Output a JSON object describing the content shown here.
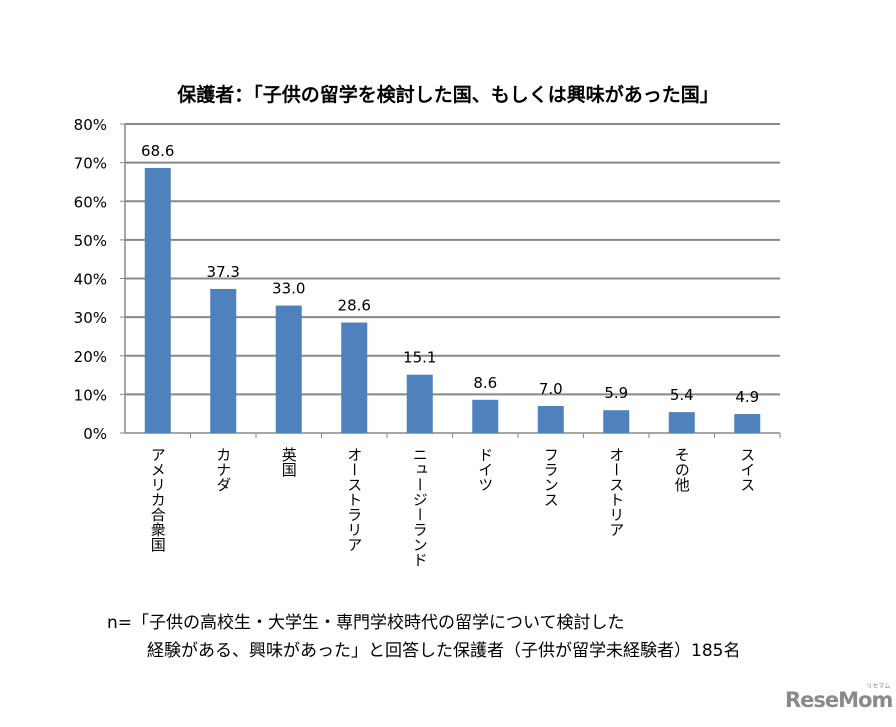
{
  "chart_data": {
    "type": "bar",
    "title": "保護者：「子供の留学を検討した国、もしくは興味があった国」",
    "categories": [
      "アメリカ合衆国",
      "カナダ",
      "英国",
      "オーストラリア",
      "ニュージーランド",
      "ドイツ",
      "フランス",
      "オーストリア",
      "その他",
      "スイス"
    ],
    "values": [
      68.6,
      37.3,
      33.0,
      28.6,
      15.1,
      8.6,
      7.0,
      5.9,
      5.4,
      4.9
    ],
    "value_labels": [
      "68.6",
      "37.3",
      "33.0",
      "28.6",
      "15.1",
      "8.6",
      "7.0",
      "5.9",
      "5.4",
      "4.9"
    ],
    "ylim": [
      0,
      80
    ],
    "yticks": [
      "0%",
      "10%",
      "20%",
      "30%",
      "40%",
      "50%",
      "60%",
      "70%",
      "80%"
    ],
    "xlabel": "",
    "ylabel": "",
    "grid": true,
    "bar_color": "#4f81bd"
  },
  "notes": {
    "line1": "n=「子供の高校生・大学生・専門学校時代の留学について検討した",
    "line2": "経験がある、興味があった」と回答した保護者（子供が留学未経験者）185名"
  },
  "logo": {
    "text": "ReseMom",
    "sub": "リセマム"
  }
}
